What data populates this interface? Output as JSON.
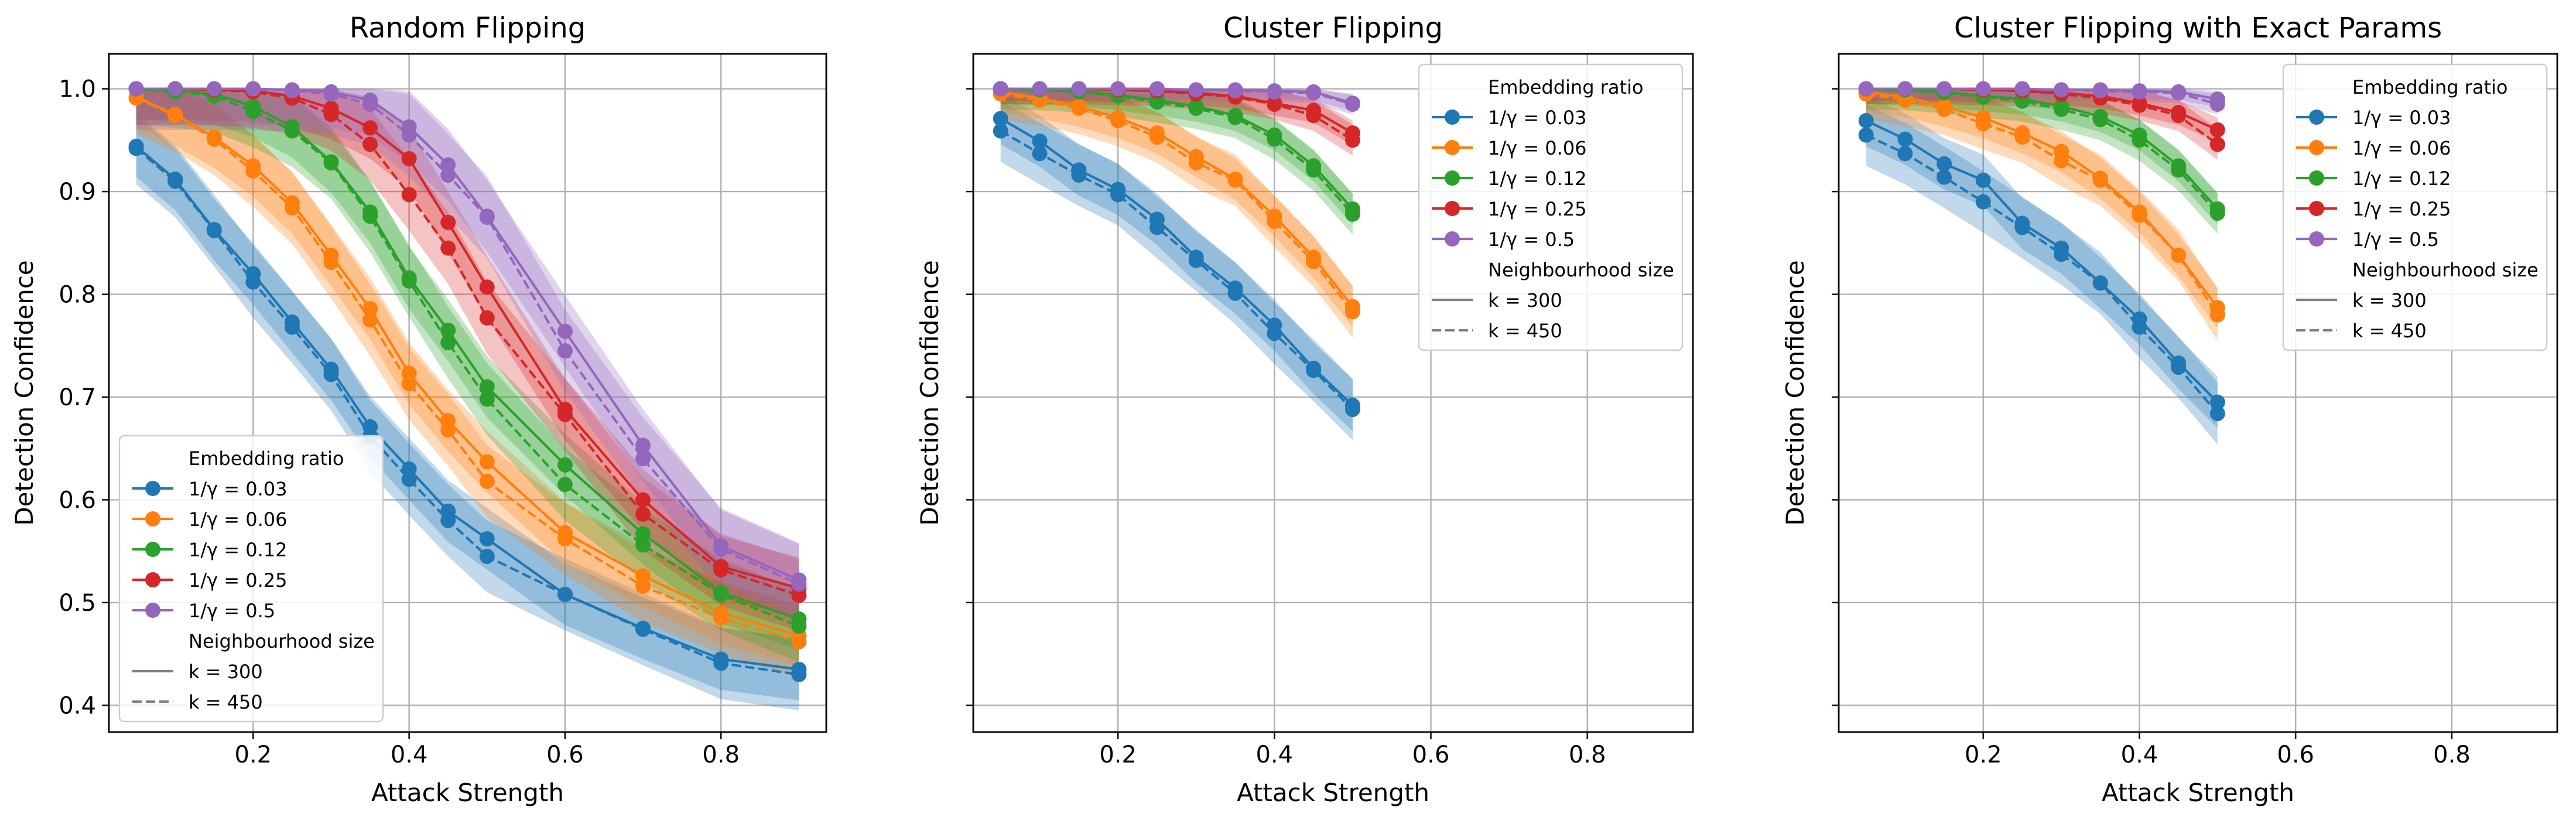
{
  "figure": {
    "colors": {
      "1/γ = 0.03": "#1f77b4",
      "1/γ = 0.06": "#ff7f0e",
      "1/γ = 0.12": "#2ca02c",
      "1/γ = 0.25": "#d62728",
      "1/γ = 0.5": "#9467bd"
    }
  },
  "chart_data": [
    {
      "type": "line",
      "title": "Random Flipping",
      "xlabel": "Attack Strength",
      "ylabel": "Detection Confidence",
      "xlim": [
        0.015,
        0.935
      ],
      "ylim": [
        0.374,
        1.034
      ],
      "xticks": [
        "0.2",
        "0.4",
        "0.6",
        "0.8"
      ],
      "yticks": [
        "0.4",
        "0.5",
        "0.6",
        "0.7",
        "0.8",
        "0.9",
        "1.0"
      ],
      "grid": true,
      "legend_position": "lower-left",
      "legend": {
        "title1": "Embedding ratio",
        "title2": "Neighbourhood size",
        "k_labels": [
          "k = 300",
          "k = 450"
        ]
      },
      "x": [
        0.05,
        0.1,
        0.15,
        0.2,
        0.25,
        0.3,
        0.35,
        0.4,
        0.45,
        0.5,
        0.6,
        0.7,
        0.8,
        0.9
      ],
      "series": [
        {
          "name": "1/γ = 0.03",
          "k": "k = 300",
          "values": [
            0.944,
            0.912,
            0.863,
            0.82,
            0.773,
            0.727,
            0.671,
            0.63,
            0.589,
            0.562,
            0.508,
            0.475,
            0.445,
            0.435
          ],
          "band": 0.03
        },
        {
          "name": "1/γ = 0.03",
          "k": "k = 450",
          "values": [
            0.942,
            0.91,
            0.862,
            0.812,
            0.768,
            0.722,
            0.662,
            0.62,
            0.58,
            0.545,
            0.508,
            0.474,
            0.441,
            0.43
          ],
          "band": 0.035
        },
        {
          "name": "1/γ = 0.06",
          "k": "k = 300",
          "values": [
            0.992,
            0.975,
            0.953,
            0.925,
            0.889,
            0.838,
            0.786,
            0.723,
            0.677,
            0.637,
            0.568,
            0.526,
            0.49,
            0.468
          ],
          "band": 0.03
        },
        {
          "name": "1/γ = 0.06",
          "k": "k = 450",
          "values": [
            0.991,
            0.974,
            0.951,
            0.92,
            0.884,
            0.831,
            0.775,
            0.713,
            0.668,
            0.618,
            0.562,
            0.516,
            0.485,
            0.462
          ],
          "band": 0.035
        },
        {
          "name": "1/γ = 0.12",
          "k": "k = 300",
          "values": [
            1.0,
            0.998,
            0.995,
            0.983,
            0.963,
            0.929,
            0.88,
            0.816,
            0.765,
            0.71,
            0.634,
            0.567,
            0.51,
            0.484
          ],
          "band": 0.03
        },
        {
          "name": "1/γ = 0.12",
          "k": "k = 450",
          "values": [
            1.0,
            0.997,
            0.993,
            0.978,
            0.959,
            0.928,
            0.876,
            0.813,
            0.753,
            0.698,
            0.615,
            0.556,
            0.508,
            0.477
          ],
          "band": 0.035
        },
        {
          "name": "1/γ = 0.25",
          "k": "k = 300",
          "values": [
            1.0,
            1.0,
            0.999,
            0.998,
            0.993,
            0.981,
            0.962,
            0.932,
            0.87,
            0.807,
            0.688,
            0.6,
            0.535,
            0.514
          ],
          "band": 0.03
        },
        {
          "name": "1/γ = 0.25",
          "k": "k = 450",
          "values": [
            1.0,
            1.0,
            0.999,
            0.997,
            0.991,
            0.975,
            0.946,
            0.897,
            0.845,
            0.777,
            0.683,
            0.586,
            0.532,
            0.507
          ],
          "band": 0.035
        },
        {
          "name": "1/γ = 0.5",
          "k": "k = 300",
          "values": [
            1.0,
            1.0,
            1.0,
            1.0,
            0.999,
            0.997,
            0.989,
            0.963,
            0.926,
            0.876,
            0.764,
            0.653,
            0.555,
            0.522
          ],
          "band": 0.035
        },
        {
          "name": "1/γ = 0.5",
          "k": "k = 450",
          "values": [
            1.0,
            1.0,
            1.0,
            1.0,
            0.998,
            0.995,
            0.985,
            0.955,
            0.916,
            0.875,
            0.745,
            0.64,
            0.552,
            0.518
          ],
          "band": 0.04
        }
      ]
    },
    {
      "type": "line",
      "title": "Cluster Flipping",
      "xlabel": "Attack Strength",
      "ylabel": "Detection Confidence",
      "xlim": [
        0.015,
        0.935
      ],
      "ylim": [
        0.374,
        1.034
      ],
      "xticks": [
        "0.2",
        "0.4",
        "0.6",
        "0.8"
      ],
      "yticks": [],
      "grid": true,
      "legend_position": "top-right",
      "legend": {
        "title1": "Embedding ratio",
        "title2": "Neighbourhood size",
        "k_labels": [
          "k = 300",
          "k = 450"
        ]
      },
      "x": [
        0.05,
        0.1,
        0.15,
        0.2,
        0.25,
        0.3,
        0.35,
        0.4,
        0.45,
        0.5
      ],
      "series": [
        {
          "name": "1/γ = 0.03",
          "k": "k = 300",
          "values": [
            0.971,
            0.949,
            0.921,
            0.902,
            0.873,
            0.836,
            0.806,
            0.77,
            0.728,
            0.692
          ],
          "band": 0.025
        },
        {
          "name": "1/γ = 0.03",
          "k": "k = 450",
          "values": [
            0.959,
            0.937,
            0.916,
            0.897,
            0.865,
            0.833,
            0.801,
            0.762,
            0.726,
            0.688
          ],
          "band": 0.03
        },
        {
          "name": "1/γ = 0.06",
          "k": "k = 300",
          "values": [
            0.997,
            0.991,
            0.983,
            0.972,
            0.957,
            0.934,
            0.912,
            0.876,
            0.836,
            0.788
          ],
          "band": 0.02
        },
        {
          "name": "1/γ = 0.06",
          "k": "k = 450",
          "values": [
            0.995,
            0.989,
            0.981,
            0.969,
            0.953,
            0.928,
            0.911,
            0.871,
            0.832,
            0.783
          ],
          "band": 0.025
        },
        {
          "name": "1/γ = 0.12",
          "k": "k = 300",
          "values": [
            1.0,
            0.999,
            0.998,
            0.994,
            0.989,
            0.983,
            0.974,
            0.955,
            0.925,
            0.883
          ],
          "band": 0.015
        },
        {
          "name": "1/γ = 0.12",
          "k": "k = 450",
          "values": [
            1.0,
            0.999,
            0.997,
            0.993,
            0.987,
            0.981,
            0.972,
            0.951,
            0.921,
            0.878
          ],
          "band": 0.02
        },
        {
          "name": "1/γ = 0.25",
          "k": "k = 300",
          "values": [
            1.0,
            1.0,
            1.0,
            0.999,
            0.998,
            0.996,
            0.993,
            0.986,
            0.979,
            0.957
          ],
          "band": 0.012
        },
        {
          "name": "1/γ = 0.25",
          "k": "k = 450",
          "values": [
            1.0,
            1.0,
            1.0,
            0.999,
            0.998,
            0.995,
            0.992,
            0.985,
            0.974,
            0.95
          ],
          "band": 0.015
        },
        {
          "name": "1/γ = 0.5",
          "k": "k = 300",
          "values": [
            1.0,
            1.0,
            1.0,
            1.0,
            1.0,
            0.999,
            0.999,
            0.998,
            0.997,
            0.986
          ],
          "band": 0.008
        },
        {
          "name": "1/γ = 0.5",
          "k": "k = 450",
          "values": [
            1.0,
            1.0,
            1.0,
            1.0,
            1.0,
            0.999,
            0.998,
            0.997,
            0.996,
            0.985
          ],
          "band": 0.01
        }
      ]
    },
    {
      "type": "line",
      "title": "Cluster Flipping with Exact Params",
      "xlabel": "Attack Strength",
      "ylabel": "Detection Confidence",
      "xlim": [
        0.015,
        0.935
      ],
      "ylim": [
        0.374,
        1.034
      ],
      "xticks": [
        "0.2",
        "0.4",
        "0.6",
        "0.8"
      ],
      "yticks": [],
      "grid": true,
      "legend_position": "top-right",
      "legend": {
        "title1": "Embedding ratio",
        "title2": "Neighbourhood size",
        "k_labels": [
          "k = 300",
          "k = 450"
        ]
      },
      "x": [
        0.05,
        0.1,
        0.15,
        0.2,
        0.25,
        0.3,
        0.35,
        0.4,
        0.45,
        0.5
      ],
      "series": [
        {
          "name": "1/γ = 0.03",
          "k": "k = 300",
          "values": [
            0.969,
            0.951,
            0.927,
            0.911,
            0.869,
            0.845,
            0.811,
            0.776,
            0.733,
            0.695
          ],
          "band": 0.025
        },
        {
          "name": "1/γ = 0.03",
          "k": "k = 450",
          "values": [
            0.955,
            0.937,
            0.914,
            0.89,
            0.865,
            0.839,
            0.811,
            0.768,
            0.729,
            0.684
          ],
          "band": 0.03
        },
        {
          "name": "1/γ = 0.06",
          "k": "k = 300",
          "values": [
            0.997,
            0.992,
            0.983,
            0.972,
            0.957,
            0.939,
            0.913,
            0.88,
            0.838,
            0.787
          ],
          "band": 0.02
        },
        {
          "name": "1/γ = 0.06",
          "k": "k = 450",
          "values": [
            0.995,
            0.989,
            0.98,
            0.966,
            0.953,
            0.93,
            0.911,
            0.877,
            0.838,
            0.78
          ],
          "band": 0.025
        },
        {
          "name": "1/γ = 0.12",
          "k": "k = 300",
          "values": [
            1.0,
            0.999,
            0.997,
            0.993,
            0.99,
            0.983,
            0.973,
            0.955,
            0.925,
            0.883
          ],
          "band": 0.015
        },
        {
          "name": "1/γ = 0.12",
          "k": "k = 450",
          "values": [
            1.0,
            0.999,
            0.996,
            0.992,
            0.988,
            0.98,
            0.97,
            0.95,
            0.921,
            0.879
          ],
          "band": 0.02
        },
        {
          "name": "1/γ = 0.25",
          "k": "k = 300",
          "values": [
            1.0,
            1.0,
            1.0,
            0.999,
            0.998,
            0.996,
            0.993,
            0.986,
            0.977,
            0.96
          ],
          "band": 0.012
        },
        {
          "name": "1/γ = 0.25",
          "k": "k = 450",
          "values": [
            1.0,
            1.0,
            1.0,
            0.999,
            0.998,
            0.995,
            0.991,
            0.984,
            0.974,
            0.946
          ],
          "band": 0.015
        },
        {
          "name": "1/γ = 0.5",
          "k": "k = 300",
          "values": [
            1.0,
            1.0,
            1.0,
            1.0,
            1.0,
            0.999,
            0.999,
            0.998,
            0.997,
            0.99
          ],
          "band": 0.008
        },
        {
          "name": "1/γ = 0.5",
          "k": "k = 450",
          "values": [
            1.0,
            1.0,
            1.0,
            1.0,
            1.0,
            0.999,
            0.998,
            0.997,
            0.996,
            0.985
          ],
          "band": 0.01
        }
      ]
    }
  ]
}
